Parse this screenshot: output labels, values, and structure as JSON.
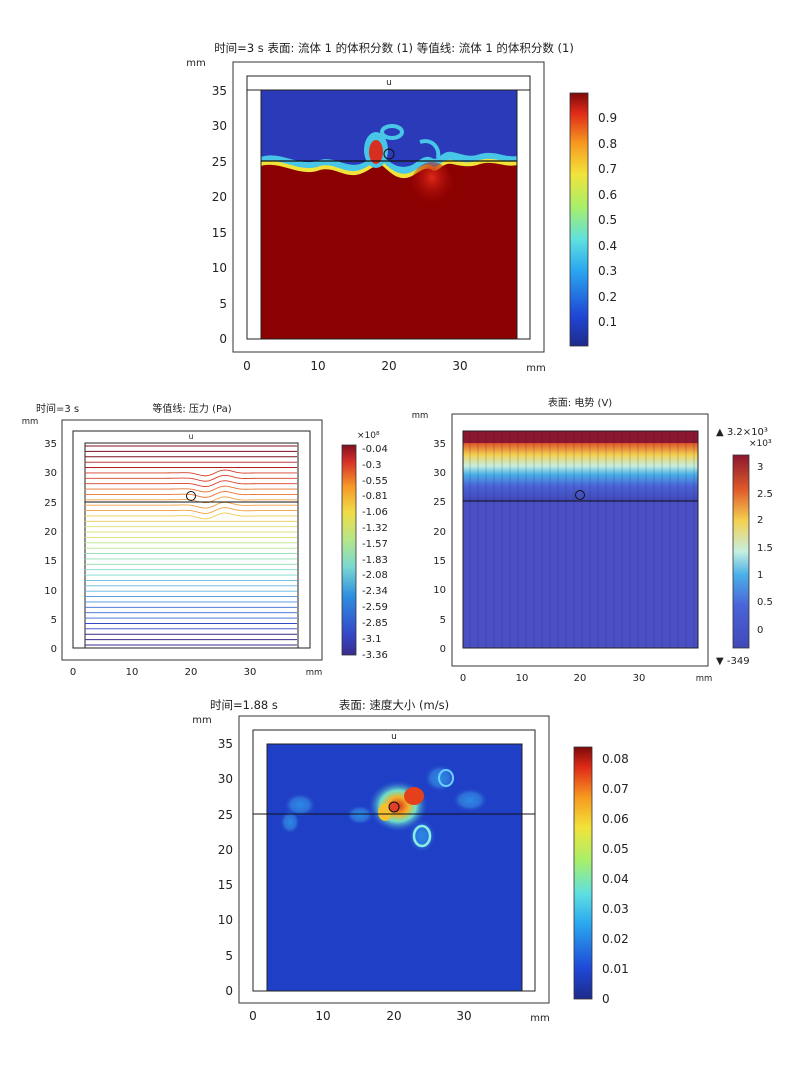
{
  "chart_data": [
    {
      "type": "heatmap",
      "title": "时间=3 s  表面: 流体 1 的体积分数 (1)  等值线: 流体 1 的体积分数 (1)",
      "xlabel": "mm",
      "ylabel": "mm",
      "xlim": [
        -2,
        43
      ],
      "ylim": [
        -1,
        39
      ],
      "x_ticks": [
        "0",
        "10",
        "20",
        "30"
      ],
      "y_ticks": [
        "0",
        "5",
        "10",
        "15",
        "20",
        "25",
        "30",
        "35"
      ],
      "colorbar": {
        "ticks": [
          "0.9",
          "0.8",
          "0.7",
          "0.6",
          "0.5",
          "0.4",
          "0.3",
          "0.2",
          "0.1"
        ],
        "range": [
          0,
          1
        ]
      },
      "domain": {
        "x": [
          2,
          38
        ],
        "y": [
          0,
          35
        ]
      },
      "interface_line_y": 25,
      "circle_center": [
        20,
        26
      ],
      "marker_label": "u",
      "colors": {
        "fluid1": "#8b0000",
        "fluid2": "#2a3ab8",
        "interface": "#48c6e8"
      }
    },
    {
      "type": "heatmap",
      "title_left": "时间=3 s",
      "title": "等值线: 压力 (Pa)",
      "xlabel": "mm",
      "ylabel": "mm",
      "xlim": [
        -2,
        41
      ],
      "ylim": [
        -1,
        38
      ],
      "x_ticks": [
        "0",
        "10",
        "20",
        "30"
      ],
      "y_ticks": [
        "0",
        "5",
        "10",
        "15",
        "20",
        "25",
        "30",
        "35"
      ],
      "colorbar": {
        "multiplier": "×10⁸",
        "ticks": [
          "-0.04",
          "-0.3",
          "-0.55",
          "-0.81",
          "-1.06",
          "-1.32",
          "-1.57",
          "-1.83",
          "-2.08",
          "-2.34",
          "-2.59",
          "-2.85",
          "-3.1",
          "-3.36"
        ],
        "range": [
          -3.36,
          -0.04
        ]
      },
      "domain": {
        "x": [
          2,
          38
        ],
        "y": [
          0,
          35
        ]
      },
      "interface_line_y": 25,
      "circle_center": [
        20,
        26
      ],
      "marker_label": "u"
    },
    {
      "type": "heatmap",
      "title": "表面: 电势 (V)",
      "xlabel": "mm",
      "ylabel": "mm",
      "xlim": [
        -0.5,
        41
      ],
      "ylim": [
        -1,
        38
      ],
      "x_ticks": [
        "0",
        "10",
        "20",
        "30"
      ],
      "y_ticks": [
        "0",
        "5",
        "10",
        "15",
        "20",
        "25",
        "30",
        "35"
      ],
      "colorbar": {
        "max_label": "▲ 3.2×10³",
        "multiplier": "×10³",
        "ticks": [
          "3",
          "2.5",
          "2",
          "1.5",
          "1",
          "0.5",
          "0"
        ],
        "min_label": "▼ -349",
        "range": [
          -0.349,
          3.2
        ]
      },
      "domain": {
        "x": [
          0,
          40
        ],
        "y": [
          0,
          37
        ]
      },
      "interface_line_y": 25,
      "circle_center": [
        20,
        26
      ]
    },
    {
      "type": "heatmap",
      "title_left": "时间=1.88 s",
      "title": "表面: 速度大小 (m/s)",
      "xlabel": "mm",
      "ylabel": "mm",
      "xlim": [
        -2,
        43
      ],
      "ylim": [
        -1,
        39
      ],
      "x_ticks": [
        "0",
        "10",
        "20",
        "30"
      ],
      "y_ticks": [
        "0",
        "5",
        "10",
        "15",
        "20",
        "25",
        "30",
        "35"
      ],
      "colorbar": {
        "ticks": [
          "0.08",
          "0.07",
          "0.06",
          "0.05",
          "0.04",
          "0.03",
          "0.02",
          "0.01",
          "0"
        ],
        "range": [
          0,
          0.085
        ]
      },
      "domain": {
        "x": [
          2,
          38
        ],
        "y": [
          0,
          35
        ]
      },
      "interface_line_y": 25,
      "circle_center": [
        20,
        26
      ],
      "marker_label": "u"
    }
  ]
}
